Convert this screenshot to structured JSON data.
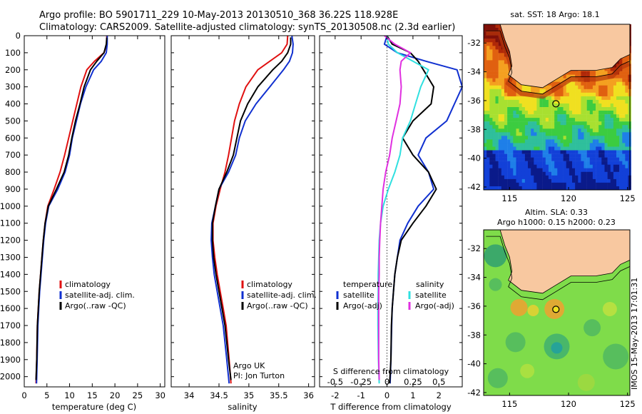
{
  "header": {
    "title_line1": "Argo profile: BO 5901711_229 10-May-2013 20130510_368 36.22S 118.928E",
    "title_line2": "Climatology: CARS2009. Satellite-adjusted climatology: synTS_20130508.nc (2.3d earlier)"
  },
  "colors": {
    "climatology": "#e01010",
    "satellite": "#1030d0",
    "argo": "#000000",
    "salinity_satellite": "#30e0e0",
    "salinity_argo": "#e030e0",
    "land": "#f8c8a0",
    "argo_marker": "#000000"
  },
  "chart_data": [
    {
      "id": "temperature",
      "type": "line",
      "xlabel": "temperature (deg C)",
      "xlim": [
        0,
        31
      ],
      "xticks": [
        0,
        5,
        10,
        15,
        20,
        25,
        30
      ],
      "ylim": [
        2060,
        0
      ],
      "yticks": [
        0,
        100,
        200,
        300,
        400,
        500,
        600,
        700,
        800,
        900,
        1000,
        1100,
        1200,
        1300,
        1400,
        1500,
        1600,
        1700,
        1800,
        1900,
        2000
      ],
      "legend": [
        "climatology",
        "satellite-adj. clim.",
        "Argo(..raw -QC)"
      ],
      "series": [
        {
          "name": "climatology",
          "color": "#e01010",
          "x": [
            18.2,
            18.2,
            17.6,
            15.5,
            13.8,
            12.5,
            11.6,
            10.7,
            9.8,
            8.9,
            7.9,
            6.6,
            5.2,
            4.6,
            4.2,
            3.9,
            3.6,
            3.3,
            3.1,
            2.9,
            2.75,
            2.6
          ],
          "y": [
            0,
            50,
            100,
            150,
            200,
            300,
            400,
            500,
            600,
            700,
            800,
            900,
            1000,
            1100,
            1200,
            1300,
            1400,
            1500,
            1600,
            1700,
            1900,
            2040
          ]
        },
        {
          "name": "satellite-adj. clim.",
          "color": "#1030d0",
          "x": [
            18.3,
            18.3,
            18.1,
            17.0,
            15.3,
            13.6,
            12.4,
            11.5,
            10.6,
            10.0,
            9.0,
            7.4,
            5.4,
            4.7,
            4.3,
            4.0,
            3.7,
            3.4,
            3.2,
            3.0,
            2.85,
            2.7
          ],
          "y": [
            0,
            50,
            100,
            150,
            200,
            300,
            400,
            500,
            600,
            700,
            800,
            900,
            1000,
            1100,
            1200,
            1300,
            1400,
            1500,
            1600,
            1700,
            1900,
            2040
          ]
        },
        {
          "name": "Argo(..raw -QC)",
          "color": "#000000",
          "x": [
            18.2,
            18.1,
            17.6,
            16.0,
            14.6,
            13.2,
            12.3,
            11.3,
            10.5,
            9.8,
            8.8,
            7.1,
            5.3,
            4.6,
            4.2,
            3.9,
            3.6,
            3.3,
            3.1,
            2.9,
            2.75,
            2.6
          ],
          "y": [
            10,
            50,
            100,
            150,
            200,
            300,
            400,
            500,
            600,
            700,
            800,
            900,
            1000,
            1100,
            1200,
            1300,
            1400,
            1500,
            1600,
            1700,
            1900,
            2020
          ]
        }
      ]
    },
    {
      "id": "salinity",
      "type": "line",
      "xlabel": "salinity",
      "xlim": [
        33.7,
        36.1
      ],
      "xticks": [
        34,
        34.5,
        35,
        35.5,
        36
      ],
      "xticklabels": [
        "34",
        "34.5",
        "35",
        "35.5",
        "36"
      ],
      "ylim": [
        2060,
        0
      ],
      "legend": [
        "climatology",
        "satellite-adj. clim.",
        "Argo(..raw -QC)"
      ],
      "annotation": [
        "Argo UK",
        "PI: Jon Turton"
      ],
      "series": [
        {
          "name": "climatology",
          "color": "#e01010",
          "x": [
            35.65,
            35.64,
            35.55,
            35.35,
            35.15,
            34.95,
            34.84,
            34.76,
            34.71,
            34.66,
            34.6,
            34.52,
            34.45,
            34.4,
            34.4,
            34.43,
            34.47,
            34.52,
            34.57,
            34.62,
            34.67,
            34.7
          ],
          "y": [
            0,
            50,
            100,
            150,
            200,
            300,
            400,
            500,
            600,
            700,
            800,
            900,
            1000,
            1100,
            1200,
            1300,
            1400,
            1500,
            1600,
            1700,
            1900,
            2040
          ]
        },
        {
          "name": "satellite-adj. clim.",
          "color": "#1030d0",
          "x": [
            35.72,
            35.74,
            35.73,
            35.68,
            35.58,
            35.35,
            35.12,
            34.94,
            34.84,
            34.78,
            34.66,
            34.5,
            34.44,
            34.38,
            34.37,
            34.39,
            34.42,
            34.47,
            34.52,
            34.57,
            34.63,
            34.67
          ],
          "y": [
            0,
            50,
            100,
            150,
            200,
            300,
            400,
            500,
            600,
            700,
            800,
            900,
            1000,
            1100,
            1200,
            1300,
            1400,
            1500,
            1600,
            1700,
            1900,
            2040
          ]
        },
        {
          "name": "Argo(..raw -QC)",
          "color": "#000000",
          "x": [
            35.7,
            35.7,
            35.65,
            35.55,
            35.4,
            35.15,
            34.98,
            34.86,
            34.8,
            34.74,
            34.63,
            34.5,
            34.44,
            34.39,
            34.39,
            34.41,
            34.45,
            34.5,
            34.55,
            34.6,
            34.66,
            34.7
          ],
          "y": [
            10,
            50,
            100,
            150,
            200,
            300,
            400,
            500,
            600,
            700,
            800,
            900,
            1000,
            1100,
            1200,
            1300,
            1400,
            1500,
            1600,
            1700,
            1900,
            2020
          ]
        }
      ]
    },
    {
      "id": "difference",
      "type": "line",
      "xlabel": "T difference from climatology",
      "top_label": "S difference from climatology",
      "xlim": [
        -2.6,
        2.9
      ],
      "xticks": [
        -2,
        -1,
        0,
        1,
        2
      ],
      "s_ticks": [
        -0.5,
        -0.25,
        0,
        0.25,
        0.5
      ],
      "s_ticklabels": [
        "-0.5",
        "-0.25",
        "0",
        "0.25",
        "0.5"
      ],
      "ylim": [
        2060,
        0
      ],
      "legend_temperature": {
        "header": "temperature",
        "items": [
          "satellite",
          "Argo(-adj)"
        ]
      },
      "legend_salinity": {
        "header": "salinity",
        "items": [
          "satellite",
          "Argo(-adj)"
        ]
      },
      "series": [
        {
          "name": "temperature satellite",
          "color": "#1030d0",
          "x": [
            0,
            -0.1,
            0.4,
            1.5,
            2.7,
            2.9,
            2.6,
            2.3,
            1.5,
            1.2,
            1.6,
            1.8,
            1.2,
            0.8,
            0.5,
            0.4,
            0.3,
            0.25,
            0.2,
            0.18,
            0.15,
            0.12
          ],
          "y": [
            0,
            50,
            100,
            150,
            200,
            300,
            400,
            500,
            600,
            700,
            800,
            900,
            1000,
            1100,
            1200,
            1300,
            1400,
            1500,
            1600,
            1700,
            1900,
            2040
          ]
        },
        {
          "name": "temperature Argo(-adj)",
          "color": "#000000",
          "x": [
            0,
            0.2,
            0.9,
            1.2,
            1.4,
            1.8,
            1.7,
            1.0,
            0.6,
            1.0,
            1.6,
            1.9,
            1.5,
            1.0,
            0.55,
            0.4,
            0.3,
            0.25,
            0.2,
            0.17,
            0.15,
            0.1
          ],
          "y": [
            0,
            50,
            100,
            150,
            200,
            300,
            400,
            500,
            600,
            700,
            800,
            900,
            1000,
            1100,
            1200,
            1300,
            1400,
            1500,
            1600,
            1700,
            1900,
            2040
          ]
        },
        {
          "name": "salinity satellite",
          "color": "#30e0e0",
          "x": [
            0,
            0.05,
            0.4,
            1.0,
            1.6,
            1.3,
            1.1,
            0.9,
            0.6,
            0.5,
            0.3,
            0.05,
            -0.15,
            -0.25,
            -0.3,
            -0.32,
            -0.34,
            -0.34,
            -0.35,
            -0.35,
            -0.33,
            -0.3
          ],
          "y": [
            0,
            50,
            100,
            150,
            200,
            300,
            400,
            500,
            600,
            700,
            800,
            900,
            1000,
            1100,
            1200,
            1300,
            1400,
            1500,
            1600,
            1700,
            1900,
            2040
          ]
        },
        {
          "name": "salinity Argo(-adj)",
          "color": "#e030e0",
          "x": [
            -0.1,
            0.3,
            0.9,
            0.55,
            0.5,
            0.55,
            0.5,
            0.35,
            0.2,
            0.1,
            -0.05,
            -0.15,
            -0.2,
            -0.25,
            -0.28,
            -0.3,
            -0.3,
            -0.32,
            -0.32,
            -0.32,
            -0.32,
            -0.3
          ],
          "y": [
            0,
            50,
            100,
            150,
            200,
            300,
            400,
            500,
            600,
            700,
            800,
            900,
            1000,
            1100,
            1200,
            1300,
            1400,
            1500,
            1600,
            1700,
            1900,
            2020
          ]
        }
      ]
    },
    {
      "id": "sst_map",
      "type": "heatmap",
      "title": "sat. SST: 18 Argo: 18.1",
      "xlim": [
        112.8,
        125.2
      ],
      "ylim": [
        -42.2,
        -30.7
      ],
      "xticks": [
        115,
        120,
        125
      ],
      "yticks": [
        -32,
        -34,
        -36,
        -38,
        -40,
        -42
      ],
      "argo_position": [
        118.928,
        -36.22
      ],
      "palette": [
        "#0a1a8a",
        "#1240d8",
        "#1e7fe8",
        "#2fbf9c",
        "#3ccc40",
        "#a8e030",
        "#f0e020",
        "#f4a020",
        "#e06010",
        "#b02808",
        "#801008"
      ],
      "land_note": "land shaded"
    },
    {
      "id": "sla_map",
      "type": "heatmap",
      "title_line1": "Altim. SLA: 0.33",
      "title_line2": "Argo h1000: 0.15 h2000: 0.23",
      "xlim": [
        112.8,
        125.2
      ],
      "ylim": [
        -42.2,
        -30.7
      ],
      "xticks": [
        115,
        120,
        125
      ],
      "yticks": [
        -32,
        -34,
        -36,
        -38,
        -40,
        -42
      ],
      "argo_position": [
        118.928,
        -36.22
      ]
    }
  ],
  "side_stamp": "IMOS 15-May-2013 17:01:31"
}
